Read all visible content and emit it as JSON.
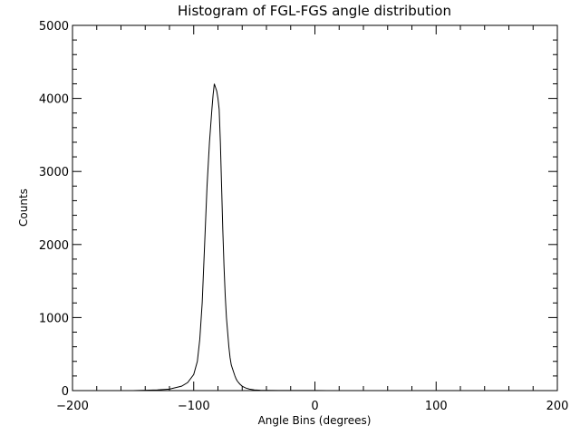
{
  "chart_data": {
    "type": "line",
    "title": "Histogram of FGL-FGS angle distribution",
    "xlabel": "Angle Bins (degrees)",
    "ylabel": "Counts",
    "xlim": [
      -200,
      200
    ],
    "ylim": [
      0,
      5000
    ],
    "x_ticks": [
      -200,
      -100,
      0,
      100,
      200
    ],
    "y_ticks": [
      0,
      1000,
      2000,
      3000,
      4000,
      5000
    ],
    "x_tick_labels": [
      "−200",
      "−100",
      "0",
      "100",
      "200"
    ],
    "y_tick_labels": [
      "0",
      "1000",
      "2000",
      "3000",
      "4000",
      "5000"
    ],
    "grid": false,
    "series": [
      {
        "name": "counts",
        "x": [
          -150,
          -140,
          -130,
          -120,
          -110,
          -105,
          -100,
          -97,
          -95,
          -93,
          -91,
          -89,
          -87,
          -85,
          -84,
          -83,
          -82,
          -81,
          -80,
          -79,
          -78,
          -77,
          -76,
          -75,
          -74,
          -73,
          -72,
          -71,
          -70,
          -69,
          -68,
          -67,
          -66,
          -65,
          -64,
          -62,
          -60,
          -57,
          -54,
          -50,
          -45,
          -40,
          -30,
          -20,
          -10,
          0,
          10
        ],
        "y": [
          0,
          5,
          10,
          20,
          60,
          110,
          220,
          400,
          700,
          1200,
          2000,
          2800,
          3400,
          3850,
          4050,
          4200,
          4150,
          4100,
          4000,
          3850,
          3400,
          2800,
          2200,
          1700,
          1300,
          1000,
          800,
          600,
          450,
          350,
          300,
          250,
          200,
          160,
          130,
          90,
          60,
          35,
          20,
          10,
          5,
          3,
          2,
          1,
          1,
          1,
          0
        ]
      }
    ]
  }
}
